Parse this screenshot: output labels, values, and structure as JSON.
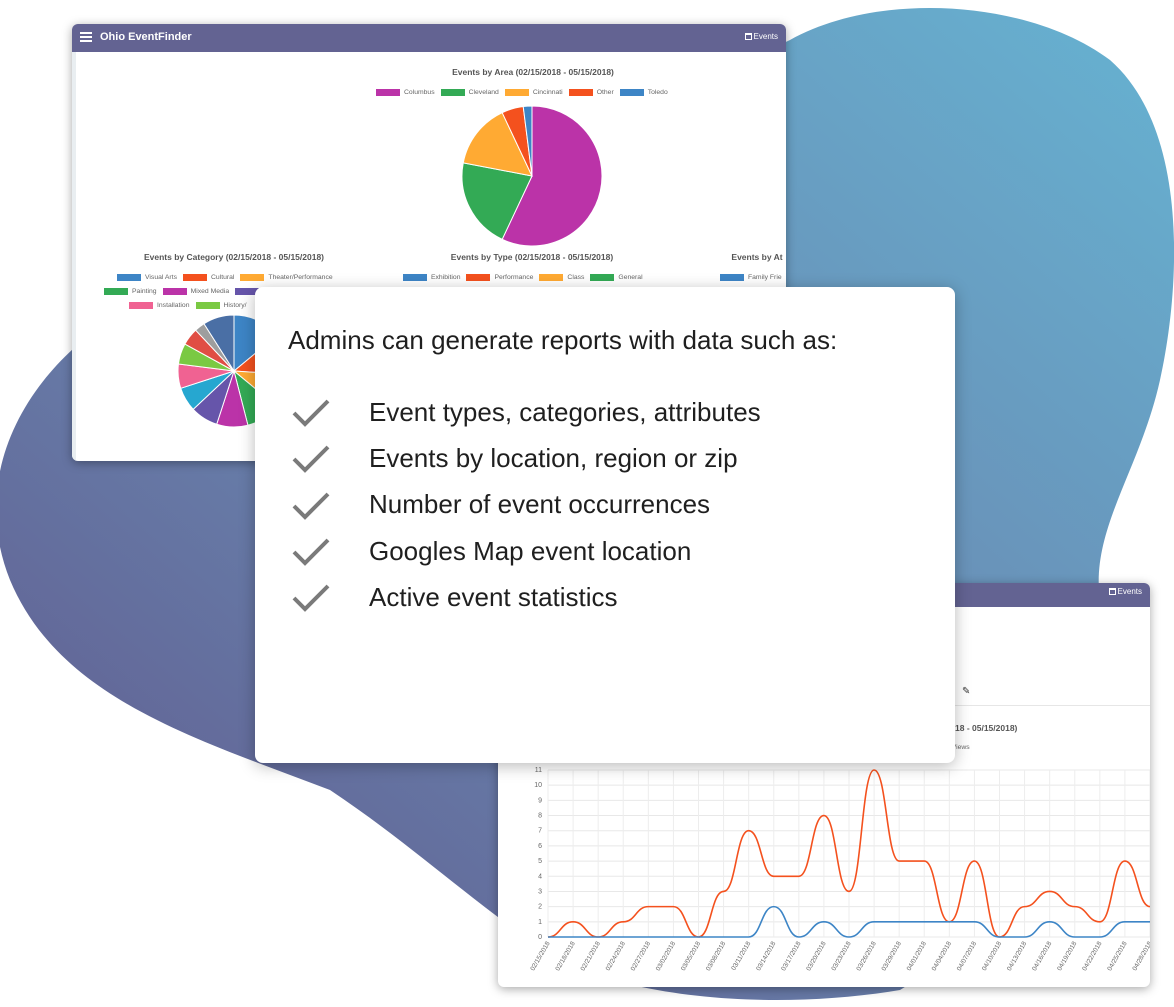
{
  "app": {
    "title": "Ohio EventFinder",
    "nav_events": "Events"
  },
  "colors": {
    "navbar": "#636392",
    "blob_light": "#66aed0",
    "blob_dark": "#5c5a8c"
  },
  "area_chart": {
    "title": "Events by Area (02/15/2018 - 05/15/2018)",
    "legend": [
      {
        "label": "Columbus",
        "color": "#bb33a8"
      },
      {
        "label": "Cleveland",
        "color": "#33aa55"
      },
      {
        "label": "Cincinnati",
        "color": "#ffaa33"
      },
      {
        "label": "Other",
        "color": "#f4511e"
      },
      {
        "label": "Toledo",
        "color": "#3d85c6"
      }
    ]
  },
  "category_chart": {
    "title": "Events by Category (02/15/2018 - 05/15/2018)",
    "legend_row1": [
      {
        "label": "Visual Arts",
        "color": "#3d85c6"
      },
      {
        "label": "Cultural",
        "color": "#f4511e"
      },
      {
        "label": "Theater/Performance",
        "color": "#ffaa33"
      }
    ],
    "legend_row2": [
      {
        "label": "Painting",
        "color": "#33aa55"
      },
      {
        "label": "Mixed Media",
        "color": "#bb33a8"
      },
      {
        "label": "",
        "color": "#6655aa"
      }
    ],
    "legend_row3": [
      {
        "label": "Installation",
        "color": "#f06292"
      },
      {
        "label": "History/",
        "color": "#7ac943"
      }
    ]
  },
  "type_chart": {
    "title": "Events by Type (02/15/2018 - 05/15/2018)",
    "legend": [
      {
        "label": "Exhibition",
        "color": "#3d85c6"
      },
      {
        "label": "Performance",
        "color": "#f4511e"
      },
      {
        "label": "Class",
        "color": "#ffaa33"
      },
      {
        "label": "General",
        "color": "#33aa55"
      }
    ]
  },
  "attr_chart": {
    "title": "Events by At",
    "legend": [
      {
        "label": "Family Frie",
        "color": "#3d85c6"
      }
    ]
  },
  "info_card": {
    "heading": "Admins can generate reports with data such as:",
    "bullets": [
      "Event types, categories, attributes",
      "Events by location, region or zip",
      "Number of event occurrences",
      "Googles Map event location",
      "Active event statistics"
    ]
  },
  "line_window": {
    "title_fragment": "18 - 05/15/2018)",
    "legend_fragment": "e Views"
  },
  "chart_data": [
    {
      "type": "pie",
      "title": "Events by Area (02/15/2018 - 05/15/2018)",
      "categories": [
        "Columbus",
        "Cleveland",
        "Cincinnati",
        "Other",
        "Toledo"
      ],
      "values": [
        57,
        21,
        15,
        5,
        2
      ]
    },
    {
      "type": "pie",
      "title": "Events by Category (02/15/2018 - 05/15/2018)",
      "slices": [
        {
          "color": "#3d85c6",
          "value": 14
        },
        {
          "color": "#f4511e",
          "value": 12
        },
        {
          "color": "#ffaa33",
          "value": 10
        },
        {
          "color": "#33aa55",
          "value": 10
        },
        {
          "color": "#bb33a8",
          "value": 9
        },
        {
          "color": "#6655aa",
          "value": 8
        },
        {
          "color": "#26a7d0",
          "value": 7
        },
        {
          "color": "#f06292",
          "value": 7
        },
        {
          "color": "#7ac943",
          "value": 6
        },
        {
          "color": "#e04e44",
          "value": 5
        },
        {
          "color": "#9e9e9e",
          "value": 3
        },
        {
          "color": "#4a6fa5",
          "value": 9
        }
      ]
    },
    {
      "type": "line",
      "title": "(02/15/2018 - 05/15/2018)",
      "x": [
        "02/15/2018",
        "02/18/2018",
        "02/21/2018",
        "02/24/2018",
        "02/27/2018",
        "03/02/2018",
        "03/05/2018",
        "03/08/2018",
        "03/11/2018",
        "03/14/2018",
        "03/17/2018",
        "03/20/2018",
        "03/23/2018",
        "03/26/2018",
        "03/29/2018",
        "04/01/2018",
        "04/04/2018",
        "04/07/2018",
        "04/10/2018",
        "04/13/2018",
        "04/16/2018",
        "04/19/2018",
        "04/22/2018",
        "04/25/2018",
        "04/28/2018"
      ],
      "ylim": [
        0,
        11
      ],
      "yticks": [
        0,
        1,
        2,
        3,
        4,
        5,
        6,
        7,
        8,
        9,
        10,
        11
      ],
      "series": [
        {
          "color": "#f4511e",
          "values": [
            0,
            1,
            0,
            1,
            2,
            2,
            0,
            3,
            7,
            4,
            4,
            8,
            3,
            11,
            5,
            5,
            1,
            5,
            0,
            2,
            3,
            2,
            1,
            5,
            2
          ]
        },
        {
          "color": "#3d85c6",
          "values": [
            0,
            0,
            0,
            0,
            0,
            0,
            0,
            0,
            0,
            2,
            0,
            1,
            0,
            1,
            1,
            1,
            1,
            1,
            0,
            0,
            1,
            0,
            0,
            1,
            1
          ]
        }
      ]
    }
  ]
}
